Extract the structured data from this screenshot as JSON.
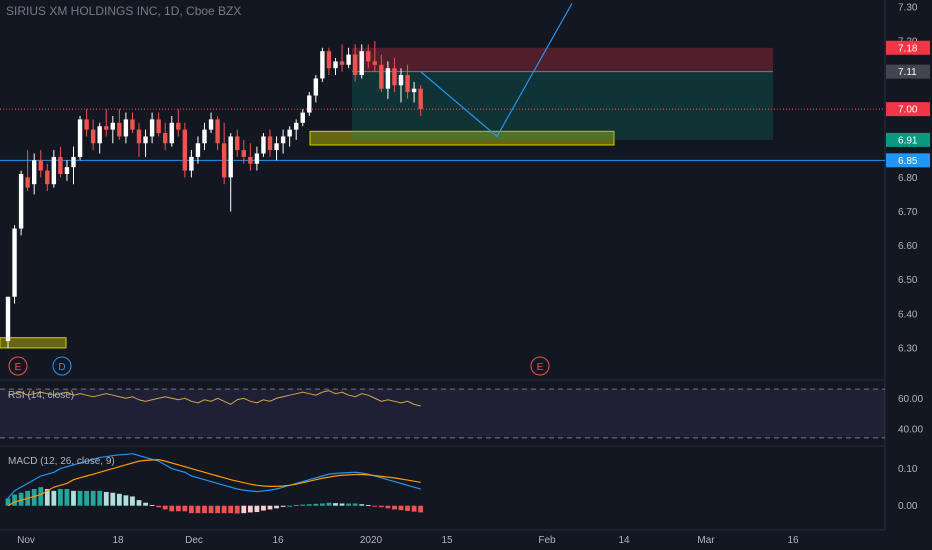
{
  "header": {
    "title": "SIRIUS XM HOLDINGS INC, 1D, Cboe BZX"
  },
  "colors": {
    "background": "#131722",
    "up": "#ffffff",
    "down": "#ef5350",
    "teal": "#26a69a",
    "blue": "#2196f3",
    "orange": "#ff9800",
    "rsi": "#d4a843",
    "yellow_zone": "#c8c800",
    "badge_red": "#f23645",
    "badge_grey": "#434651",
    "badge_green": "#089981"
  },
  "chart_data": [
    {
      "type": "candlestick",
      "title": "SIRIUS XM HOLDINGS INC, 1D, Cboe BZX",
      "ylim": [
        6.25,
        7.32
      ],
      "y_ticks": [
        "7.30",
        "7.20",
        "7.10",
        "7.00",
        "6.90",
        "6.80",
        "6.70",
        "6.60",
        "6.50",
        "6.40",
        "6.30"
      ],
      "x_ticks": [
        "Nov",
        "18",
        "Dec",
        "16",
        "2020",
        "15",
        "Feb",
        "14",
        "Mar",
        "16"
      ],
      "price_badges": [
        {
          "value": "7.18",
          "color": "badge_red"
        },
        {
          "value": "7.11",
          "color": "badge_grey"
        },
        {
          "value": "7.00",
          "color": "badge_red"
        },
        {
          "value": "6.91",
          "color": "badge_green"
        },
        {
          "value": "6.85",
          "color": "badge_blue"
        }
      ],
      "horizontal_line": 6.85,
      "dotted_line": 7.0,
      "event_markers": [
        {
          "label": "E",
          "position": "first"
        },
        {
          "label": "D",
          "position": "second"
        },
        {
          "label": "E",
          "position": "late-january"
        }
      ],
      "candles": [
        [
          6.32,
          6.45,
          6.3,
          6.45
        ],
        [
          6.45,
          6.66,
          6.43,
          6.65
        ],
        [
          6.65,
          6.82,
          6.63,
          6.81
        ],
        [
          6.8,
          6.88,
          6.76,
          6.77
        ],
        [
          6.78,
          6.87,
          6.75,
          6.85
        ],
        [
          6.85,
          6.88,
          6.8,
          6.82
        ],
        [
          6.82,
          6.84,
          6.76,
          6.78
        ],
        [
          6.78,
          6.88,
          6.77,
          6.86
        ],
        [
          6.86,
          6.89,
          6.8,
          6.81
        ],
        [
          6.81,
          6.85,
          6.79,
          6.83
        ],
        [
          6.83,
          6.89,
          6.78,
          6.86
        ],
        [
          6.86,
          6.98,
          6.85,
          6.97
        ],
        [
          6.97,
          7.0,
          6.92,
          6.94
        ],
        [
          6.94,
          6.97,
          6.88,
          6.9
        ],
        [
          6.9,
          6.96,
          6.87,
          6.95
        ],
        [
          6.95,
          7.0,
          6.92,
          6.94
        ],
        [
          6.94,
          6.98,
          6.9,
          6.96
        ],
        [
          6.96,
          7.0,
          6.91,
          6.92
        ],
        [
          6.92,
          6.99,
          6.9,
          6.97
        ],
        [
          6.97,
          6.99,
          6.93,
          6.94
        ],
        [
          6.94,
          6.96,
          6.86,
          6.9
        ],
        [
          6.9,
          6.94,
          6.86,
          6.92
        ],
        [
          6.92,
          6.99,
          6.9,
          6.97
        ],
        [
          6.97,
          6.99,
          6.92,
          6.93
        ],
        [
          6.93,
          6.96,
          6.88,
          6.9
        ],
        [
          6.9,
          6.98,
          6.89,
          6.96
        ],
        [
          6.96,
          7.0,
          6.92,
          6.94
        ],
        [
          6.94,
          6.96,
          6.8,
          6.82
        ],
        [
          6.82,
          6.88,
          6.8,
          6.86
        ],
        [
          6.86,
          6.92,
          6.84,
          6.9
        ],
        [
          6.9,
          6.96,
          6.88,
          6.94
        ],
        [
          6.94,
          6.99,
          6.93,
          6.97
        ],
        [
          6.97,
          6.98,
          6.88,
          6.9
        ],
        [
          6.9,
          6.96,
          6.78,
          6.8
        ],
        [
          6.8,
          6.93,
          6.7,
          6.92
        ],
        [
          6.92,
          6.94,
          6.86,
          6.88
        ],
        [
          6.88,
          6.91,
          6.84,
          6.86
        ],
        [
          6.86,
          6.9,
          6.82,
          6.84
        ],
        [
          6.84,
          6.89,
          6.82,
          6.87
        ],
        [
          6.87,
          6.93,
          6.86,
          6.92
        ],
        [
          6.92,
          6.94,
          6.86,
          6.88
        ],
        [
          6.88,
          6.92,
          6.85,
          6.9
        ],
        [
          6.9,
          6.94,
          6.87,
          6.92
        ],
        [
          6.92,
          6.95,
          6.89,
          6.94
        ],
        [
          6.94,
          6.97,
          6.91,
          6.96
        ],
        [
          6.96,
          7.0,
          6.95,
          6.99
        ],
        [
          6.99,
          7.05,
          6.98,
          7.04
        ],
        [
          7.04,
          7.1,
          7.02,
          7.09
        ],
        [
          7.09,
          7.18,
          7.08,
          7.17
        ],
        [
          7.17,
          7.18,
          7.1,
          7.12
        ],
        [
          7.12,
          7.15,
          7.1,
          7.14
        ],
        [
          7.14,
          7.19,
          7.11,
          7.13
        ],
        [
          7.13,
          7.18,
          7.12,
          7.16
        ],
        [
          7.16,
          7.19,
          7.08,
          7.1
        ],
        [
          7.1,
          7.19,
          7.09,
          7.17
        ],
        [
          7.17,
          7.19,
          7.12,
          7.14
        ],
        [
          7.14,
          7.2,
          7.11,
          7.13
        ],
        [
          7.13,
          7.16,
          7.05,
          7.06
        ],
        [
          7.06,
          7.14,
          7.03,
          7.12
        ],
        [
          7.12,
          7.15,
          7.05,
          7.07
        ],
        [
          7.07,
          7.12,
          7.02,
          7.1
        ],
        [
          7.1,
          7.13,
          7.03,
          7.05
        ],
        [
          7.05,
          7.08,
          7.02,
          7.06
        ],
        [
          7.06,
          7.07,
          6.98,
          7.0
        ]
      ],
      "trade_box": {
        "entry": 7.11,
        "stop": 7.18,
        "target": 6.91
      },
      "support_zones": [
        {
          "low": 6.895,
          "high": 6.935
        },
        {
          "low": 6.3,
          "high": 6.33
        }
      ],
      "projection_path": [
        [
          7.11,
          0
        ],
        [
          6.92,
          1
        ],
        [
          7.31,
          2
        ]
      ]
    },
    {
      "type": "line",
      "name": "RSI",
      "title": "RSI (14, close)",
      "ylim": [
        30,
        70
      ],
      "y_ticks": [
        "60.00",
        "40.00"
      ],
      "bands": [
        66,
        34
      ],
      "values": [
        62,
        63,
        64,
        62,
        63,
        64,
        63,
        62,
        63,
        64,
        62,
        63,
        62,
        61,
        62,
        63,
        62,
        61,
        60,
        61,
        59,
        58,
        59,
        60,
        61,
        60,
        59,
        60,
        58,
        57,
        59,
        58,
        60,
        58,
        56,
        59,
        60,
        58,
        57,
        59,
        58,
        60,
        61,
        62,
        63,
        64,
        63,
        62,
        64,
        65,
        63,
        64,
        62,
        61,
        63,
        62,
        60,
        58,
        59,
        58,
        57,
        58,
        56,
        55
      ]
    },
    {
      "type": "bar+line",
      "name": "MACD",
      "title": "MACD (12, 26, close, 9)",
      "ylim": [
        -0.06,
        0.15
      ],
      "y_ticks": [
        "0.10",
        "0.00"
      ],
      "macd": [
        0.02,
        0.04,
        0.05,
        0.06,
        0.07,
        0.08,
        0.085,
        0.09,
        0.1,
        0.105,
        0.11,
        0.115,
        0.12,
        0.125,
        0.13,
        0.132,
        0.135,
        0.137,
        0.138,
        0.14,
        0.135,
        0.13,
        0.125,
        0.12,
        0.11,
        0.1,
        0.095,
        0.09,
        0.08,
        0.075,
        0.07,
        0.065,
        0.06,
        0.055,
        0.05,
        0.045,
        0.042,
        0.04,
        0.038,
        0.04,
        0.042,
        0.045,
        0.05,
        0.055,
        0.06,
        0.065,
        0.07,
        0.075,
        0.08,
        0.085,
        0.087,
        0.088,
        0.089,
        0.09,
        0.088,
        0.085,
        0.08,
        0.075,
        0.07,
        0.065,
        0.06,
        0.055,
        0.05,
        0.045
      ],
      "signal": [
        0.0,
        0.01,
        0.015,
        0.02,
        0.025,
        0.03,
        0.04,
        0.05,
        0.055,
        0.06,
        0.07,
        0.075,
        0.08,
        0.085,
        0.09,
        0.095,
        0.1,
        0.105,
        0.11,
        0.115,
        0.12,
        0.122,
        0.123,
        0.124,
        0.12,
        0.115,
        0.11,
        0.105,
        0.1,
        0.095,
        0.09,
        0.085,
        0.08,
        0.075,
        0.07,
        0.066,
        0.062,
        0.058,
        0.055,
        0.053,
        0.052,
        0.052,
        0.053,
        0.055,
        0.058,
        0.062,
        0.066,
        0.07,
        0.074,
        0.077,
        0.08,
        0.082,
        0.083,
        0.084,
        0.084,
        0.083,
        0.081,
        0.079,
        0.077,
        0.075,
        0.072,
        0.069,
        0.066,
        0.063
      ],
      "histogram": [
        0.02,
        0.03,
        0.035,
        0.04,
        0.045,
        0.05,
        0.045,
        0.04,
        0.045,
        0.045,
        0.04,
        0.04,
        0.04,
        0.04,
        0.04,
        0.037,
        0.035,
        0.032,
        0.028,
        0.025,
        0.015,
        0.008,
        0.002,
        -0.004,
        -0.01,
        -0.015,
        -0.015,
        -0.015,
        -0.02,
        -0.02,
        -0.02,
        -0.02,
        -0.02,
        -0.02,
        -0.02,
        -0.021,
        -0.02,
        -0.018,
        -0.017,
        -0.013,
        -0.01,
        -0.007,
        -0.003,
        0.0,
        0.002,
        0.003,
        0.004,
        0.005,
        0.006,
        0.008,
        0.007,
        0.006,
        0.006,
        0.006,
        0.004,
        0.002,
        -0.001,
        -0.004,
        -0.007,
        -0.01,
        -0.012,
        -0.014,
        -0.016,
        -0.018
      ]
    }
  ]
}
